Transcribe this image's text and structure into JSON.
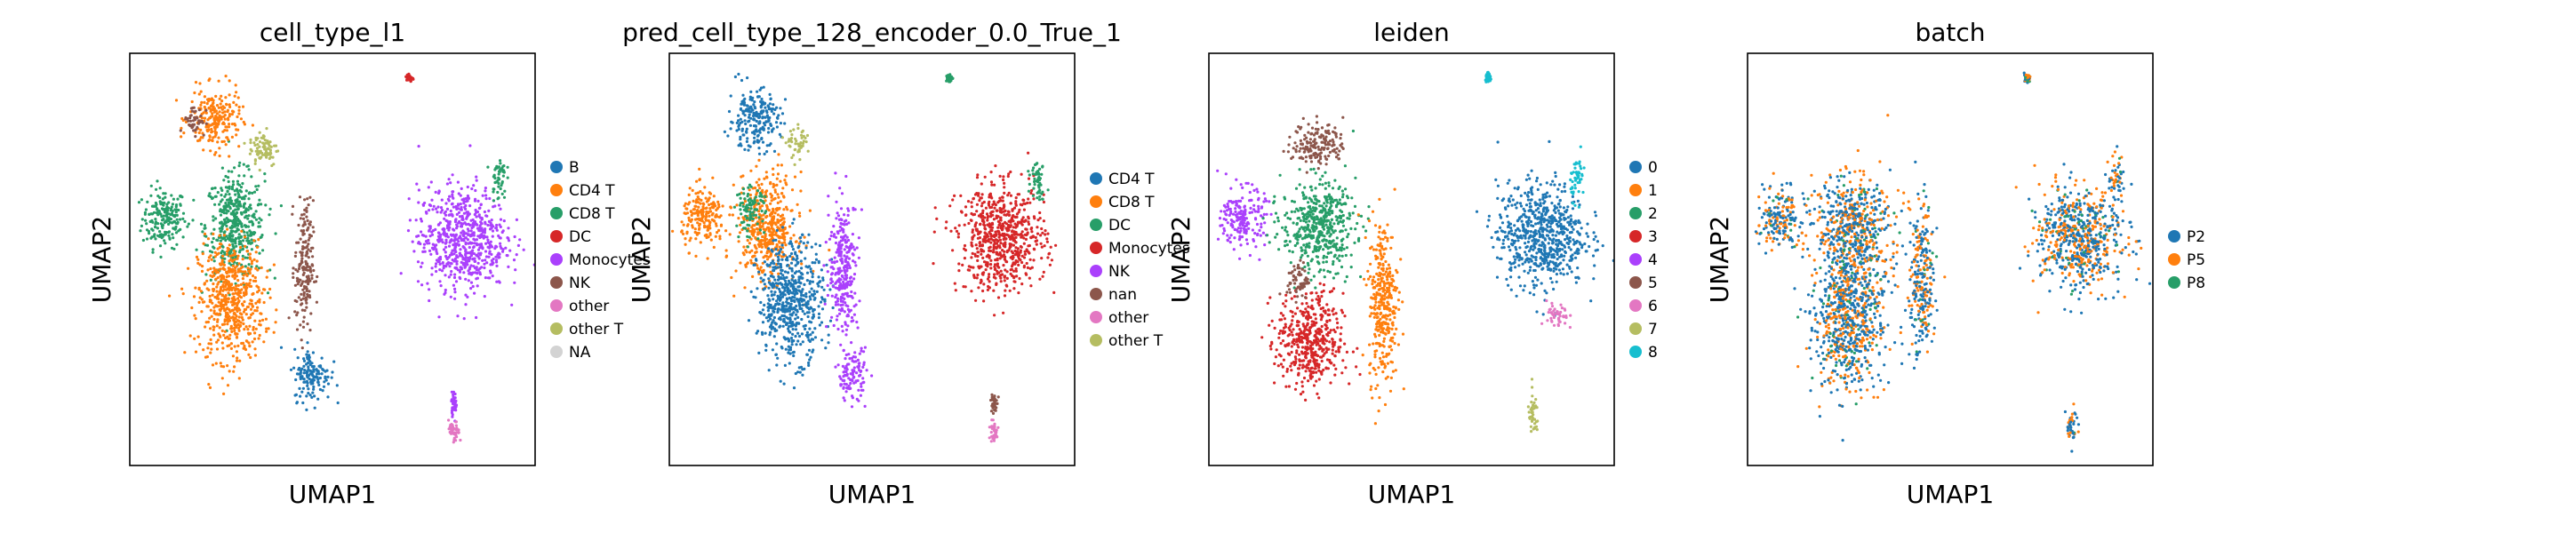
{
  "figure": {
    "type": "scatter",
    "style": "umap-embedding-grid",
    "panel_count": 4
  },
  "chart_data": [
    {
      "type": "scatter",
      "title": "cell_type_l1",
      "xlabel": "UMAP1",
      "ylabel": "UMAP2",
      "xticks": false,
      "yticks": false,
      "legend_position": "right",
      "categories": [
        {
          "name": "B",
          "color": "#1f77b4"
        },
        {
          "name": "CD4 T",
          "color": "#ff7f0e"
        },
        {
          "name": "CD8 T",
          "color": "#279e68"
        },
        {
          "name": "DC",
          "color": "#d62728"
        },
        {
          "name": "Monocytes",
          "color": "#aa40fc"
        },
        {
          "name": "NK",
          "color": "#8c564b"
        },
        {
          "name": "other",
          "color": "#e377c2"
        },
        {
          "name": "other T",
          "color": "#b5bd61"
        },
        {
          "name": "NA",
          "color": "#d3d3d3"
        }
      ],
      "clusters": [
        {
          "label": "CD8 T",
          "cx": 0.085,
          "cy": 0.6,
          "rx": 0.06,
          "ry": 0.08
        },
        {
          "label": "CD8 T",
          "cx": 0.26,
          "cy": 0.58,
          "rx": 0.08,
          "ry": 0.14
        },
        {
          "label": "CD4 T",
          "cx": 0.25,
          "cy": 0.4,
          "rx": 0.09,
          "ry": 0.16
        },
        {
          "label": "CD4 T",
          "cx": 0.21,
          "cy": 0.84,
          "rx": 0.07,
          "ry": 0.08
        },
        {
          "label": "NK",
          "cx": 0.16,
          "cy": 0.84,
          "rx": 0.03,
          "ry": 0.04
        },
        {
          "label": "NK",
          "cx": 0.43,
          "cy": 0.48,
          "rx": 0.025,
          "ry": 0.18
        },
        {
          "label": "other T",
          "cx": 0.33,
          "cy": 0.77,
          "rx": 0.04,
          "ry": 0.05
        },
        {
          "label": "B",
          "cx": 0.45,
          "cy": 0.22,
          "rx": 0.05,
          "ry": 0.07
        },
        {
          "label": "Monocytes",
          "cx": 0.82,
          "cy": 0.55,
          "rx": 0.12,
          "ry": 0.14
        },
        {
          "label": "CD8 T",
          "cx": 0.91,
          "cy": 0.7,
          "rx": 0.02,
          "ry": 0.06
        },
        {
          "label": "DC",
          "cx": 0.69,
          "cy": 0.94,
          "rx": 0.008,
          "ry": 0.012
        },
        {
          "label": "Monocytes",
          "cx": 0.8,
          "cy": 0.15,
          "rx": 0.008,
          "ry": 0.03
        },
        {
          "label": "other",
          "cx": 0.8,
          "cy": 0.08,
          "rx": 0.015,
          "ry": 0.03
        }
      ]
    },
    {
      "type": "scatter",
      "title": "pred_cell_type_128_encoder_0.0_True_1",
      "xlabel": "UMAP1",
      "ylabel": "UMAP2",
      "xticks": false,
      "yticks": false,
      "legend_position": "right",
      "categories": [
        {
          "name": "CD4 T",
          "color": "#1f77b4"
        },
        {
          "name": "CD8 T",
          "color": "#ff7f0e"
        },
        {
          "name": "DC",
          "color": "#279e68"
        },
        {
          "name": "Monocytes",
          "color": "#d62728"
        },
        {
          "name": "NK",
          "color": "#aa40fc"
        },
        {
          "name": "nan",
          "color": "#8c564b"
        },
        {
          "name": "other",
          "color": "#e377c2"
        },
        {
          "name": "other T",
          "color": "#b5bd61"
        }
      ],
      "clusters": [
        {
          "label": "CD8 T",
          "cx": 0.085,
          "cy": 0.6,
          "rx": 0.06,
          "ry": 0.08
        },
        {
          "label": "CD8 T",
          "cx": 0.24,
          "cy": 0.58,
          "rx": 0.08,
          "ry": 0.14
        },
        {
          "label": "CD4 T",
          "cx": 0.3,
          "cy": 0.4,
          "rx": 0.09,
          "ry": 0.16
        },
        {
          "label": "CD4 T",
          "cx": 0.21,
          "cy": 0.84,
          "rx": 0.07,
          "ry": 0.08
        },
        {
          "label": "DC",
          "cx": 0.2,
          "cy": 0.62,
          "rx": 0.04,
          "ry": 0.06
        },
        {
          "label": "NK",
          "cx": 0.43,
          "cy": 0.48,
          "rx": 0.04,
          "ry": 0.18
        },
        {
          "label": "other T",
          "cx": 0.32,
          "cy": 0.78,
          "rx": 0.03,
          "ry": 0.04
        },
        {
          "label": "NK",
          "cx": 0.45,
          "cy": 0.22,
          "rx": 0.04,
          "ry": 0.07
        },
        {
          "label": "Monocytes",
          "cx": 0.82,
          "cy": 0.55,
          "rx": 0.12,
          "ry": 0.14
        },
        {
          "label": "DC",
          "cx": 0.91,
          "cy": 0.7,
          "rx": 0.02,
          "ry": 0.06
        },
        {
          "label": "DC",
          "cx": 0.69,
          "cy": 0.94,
          "rx": 0.008,
          "ry": 0.012
        },
        {
          "label": "nan",
          "cx": 0.8,
          "cy": 0.15,
          "rx": 0.008,
          "ry": 0.03
        },
        {
          "label": "other",
          "cx": 0.8,
          "cy": 0.08,
          "rx": 0.015,
          "ry": 0.03
        }
      ]
    },
    {
      "type": "scatter",
      "title": "leiden",
      "xlabel": "UMAP1",
      "ylabel": "UMAP2",
      "xticks": false,
      "yticks": false,
      "legend_position": "right",
      "categories": [
        {
          "name": "0",
          "color": "#1f77b4"
        },
        {
          "name": "1",
          "color": "#ff7f0e"
        },
        {
          "name": "2",
          "color": "#279e68"
        },
        {
          "name": "3",
          "color": "#d62728"
        },
        {
          "name": "4",
          "color": "#aa40fc"
        },
        {
          "name": "5",
          "color": "#8c564b"
        },
        {
          "name": "6",
          "color": "#e377c2"
        },
        {
          "name": "7",
          "color": "#b5bd61"
        },
        {
          "name": "8",
          "color": "#17becf"
        }
      ],
      "clusters": [
        {
          "label": "4",
          "cx": 0.085,
          "cy": 0.6,
          "rx": 0.06,
          "ry": 0.08
        },
        {
          "label": "2",
          "cx": 0.27,
          "cy": 0.58,
          "rx": 0.1,
          "ry": 0.12
        },
        {
          "label": "5",
          "cx": 0.27,
          "cy": 0.78,
          "rx": 0.07,
          "ry": 0.06
        },
        {
          "label": "3",
          "cx": 0.25,
          "cy": 0.3,
          "rx": 0.09,
          "ry": 0.13
        },
        {
          "label": "5",
          "cx": 0.22,
          "cy": 0.45,
          "rx": 0.03,
          "ry": 0.05
        },
        {
          "label": "1",
          "cx": 0.43,
          "cy": 0.4,
          "rx": 0.04,
          "ry": 0.22
        },
        {
          "label": "0",
          "cx": 0.82,
          "cy": 0.56,
          "rx": 0.12,
          "ry": 0.14
        },
        {
          "label": "6",
          "cx": 0.86,
          "cy": 0.36,
          "rx": 0.03,
          "ry": 0.04
        },
        {
          "label": "8",
          "cx": 0.91,
          "cy": 0.7,
          "rx": 0.02,
          "ry": 0.06
        },
        {
          "label": "8",
          "cx": 0.69,
          "cy": 0.94,
          "rx": 0.008,
          "ry": 0.012
        },
        {
          "label": "7",
          "cx": 0.8,
          "cy": 0.12,
          "rx": 0.015,
          "ry": 0.06
        }
      ]
    },
    {
      "type": "scatter",
      "title": "batch",
      "xlabel": "UMAP1",
      "ylabel": "UMAP2",
      "xticks": false,
      "yticks": false,
      "legend_position": "right",
      "categories": [
        {
          "name": "P2",
          "color": "#1f77b4"
        },
        {
          "name": "P5",
          "color": "#ff7f0e"
        },
        {
          "name": "P8",
          "color": "#279e68"
        }
      ],
      "clusters": [
        {
          "label": "mixed",
          "cx": 0.085,
          "cy": 0.6,
          "rx": 0.06,
          "ry": 0.08
        },
        {
          "label": "mixed",
          "cx": 0.26,
          "cy": 0.58,
          "rx": 0.1,
          "ry": 0.14
        },
        {
          "label": "mixed",
          "cx": 0.25,
          "cy": 0.36,
          "rx": 0.1,
          "ry": 0.2
        },
        {
          "label": "mixed",
          "cx": 0.43,
          "cy": 0.45,
          "rx": 0.035,
          "ry": 0.2
        },
        {
          "label": "mixed",
          "cx": 0.82,
          "cy": 0.55,
          "rx": 0.12,
          "ry": 0.14
        },
        {
          "label": "mixed",
          "cx": 0.91,
          "cy": 0.7,
          "rx": 0.02,
          "ry": 0.06
        },
        {
          "label": "mixed",
          "cx": 0.69,
          "cy": 0.94,
          "rx": 0.008,
          "ry": 0.012
        },
        {
          "label": "mixed",
          "cx": 0.8,
          "cy": 0.1,
          "rx": 0.015,
          "ry": 0.06
        }
      ]
    }
  ]
}
